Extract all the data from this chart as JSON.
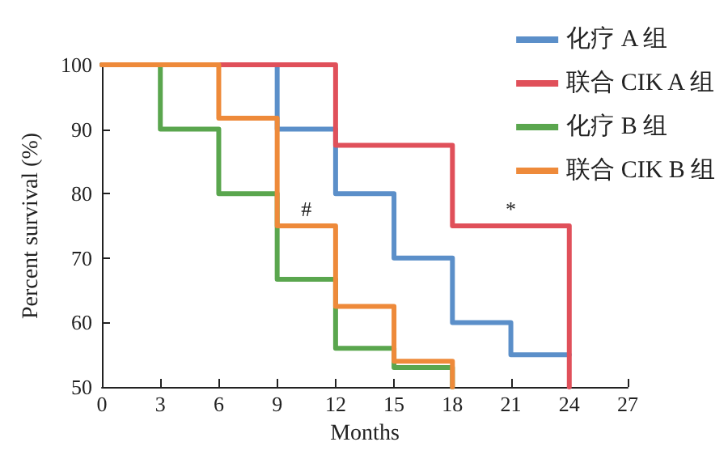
{
  "chart_data": {
    "type": "step",
    "xlabel": "Months",
    "ylabel": "Percent survival (%)",
    "xlim": [
      0,
      27
    ],
    "xticks": [
      0,
      3,
      6,
      9,
      12,
      15,
      18,
      21,
      24,
      27
    ],
    "ylim": [
      50,
      100
    ],
    "yticks": [
      50,
      60,
      70,
      80,
      90,
      100
    ],
    "grid": false,
    "legend": "top right",
    "marker": "none",
    "line_style": "solid",
    "annotations": [
      {
        "text": "#",
        "x": 10.5,
        "y": 75
      },
      {
        "text": "*",
        "x": 21,
        "y": 75
      }
    ],
    "series": [
      {
        "name": "化疗 A 组",
        "color": "#5b8fc9",
        "x": [
          0,
          9,
          12,
          15,
          18,
          21,
          24
        ],
        "values": [
          100,
          90,
          80,
          70,
          60,
          55,
          55
        ]
      },
      {
        "name": "联合 CIK A 组",
        "color": "#e0505a",
        "x": [
          0,
          12,
          18,
          24
        ],
        "values": [
          100,
          87.5,
          75,
          50
        ]
      },
      {
        "name": "化疗 B 组",
        "color": "#5aa64e",
        "x": [
          0,
          3,
          6,
          9,
          12,
          15,
          18
        ],
        "values": [
          100,
          90,
          80,
          66.7,
          56,
          53,
          50
        ]
      },
      {
        "name": "联合 CIK B 组",
        "color": "#ee8a3a",
        "x": [
          0,
          6,
          9,
          12,
          15,
          18
        ],
        "values": [
          100,
          91.7,
          75,
          62.5,
          54,
          50
        ]
      }
    ]
  }
}
